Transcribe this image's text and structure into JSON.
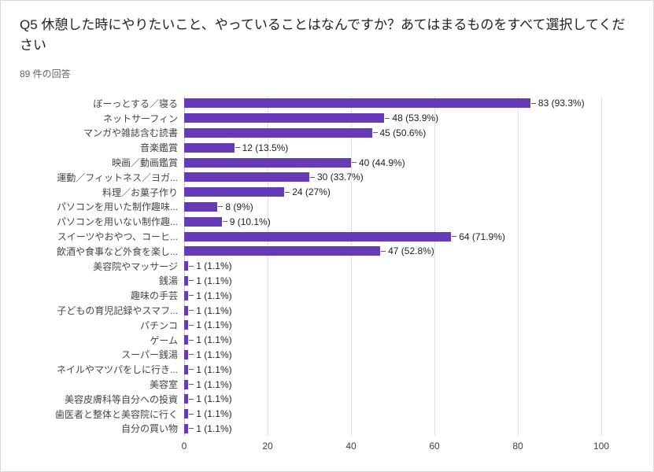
{
  "page": {
    "title": "Q5 休憩した時にやりたいこと、やっていることはなんですか？あてはまるものをすべて選択してください",
    "responses_label": "89 件の回答"
  },
  "chart_data": {
    "type": "bar",
    "orientation": "horizontal",
    "title": "Q5 休憩した時にやりたいこと、やっていることはなんですか？あてはまるものをすべて選択してください",
    "subtitle": "89 件の回答",
    "categories": [
      "ぼーっとする／寝る",
      "ネットサーフィン",
      "マンガや雑誌含む読書",
      "音楽鑑賞",
      "映画／動画鑑賞",
      "運動／フィットネス／ヨガ...",
      "料理／お菓子作り",
      "パソコンを用いた制作趣味...",
      "パソコンを用いない制作趣...",
      "スイーツやおやつ、コーヒ...",
      "飲酒や食事など外食を楽し...",
      "美容院やマッサージ",
      "銭湯",
      "趣味の手芸",
      "子どもの育児記録やスマフ...",
      "パチンコ",
      "ゲーム",
      "スーパー銭湯",
      "ネイルやマツパをしに行き...",
      "美容室",
      "美容皮膚科等自分への投資",
      "歯医者と整体と美容院に行く",
      "自分の買い物"
    ],
    "values": [
      83,
      48,
      45,
      12,
      40,
      30,
      24,
      8,
      9,
      64,
      47,
      1,
      1,
      1,
      1,
      1,
      1,
      1,
      1,
      1,
      1,
      1,
      1
    ],
    "value_labels": [
      "83 (93.3%)",
      "48 (53.9%)",
      "45 (50.6%)",
      "12 (13.5%)",
      "40 (44.9%)",
      "30 (33.7%)",
      "24 (27%)",
      "8 (9%)",
      "9 (10.1%)",
      "64 (71.9%)",
      "47 (52.8%)",
      "1 (1.1%)",
      "1 (1.1%)",
      "1 (1.1%)",
      "1 (1.1%)",
      "1 (1.1%)",
      "1 (1.1%)",
      "1 (1.1%)",
      "1 (1.1%)",
      "1 (1.1%)",
      "1 (1.1%)",
      "1 (1.1%)",
      "1 (1.1%)"
    ],
    "xlabel": "",
    "ylabel": "",
    "xlim": [
      0,
      100
    ],
    "xticks": [
      0,
      20,
      40,
      60,
      80,
      100
    ],
    "bar_color": "#673ab7",
    "grid": true,
    "legend": "none"
  }
}
